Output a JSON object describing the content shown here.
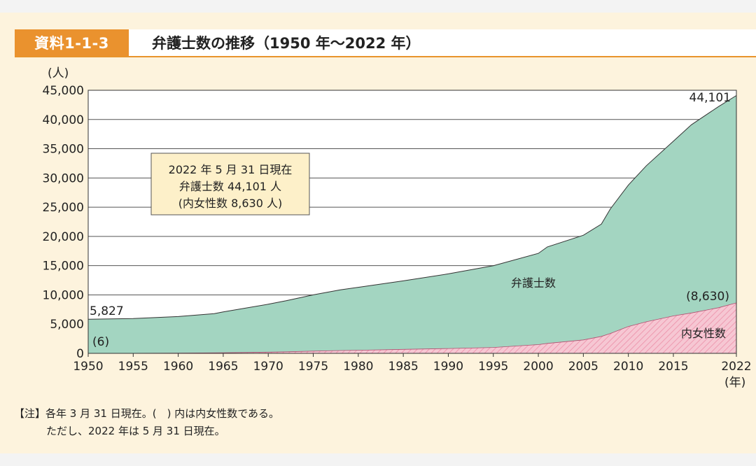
{
  "header": {
    "tag": "資料1-1-3",
    "title": "弁護士数の推移（1950 年～2022 年）"
  },
  "note": {
    "prefix": "【注】",
    "line1": "各年 3 月 31 日現在。(　) 内は内女性数である。",
    "line2": "ただし、2022 年は 5 月 31 日現在。"
  },
  "colors": {
    "total": "#a3d5c1",
    "women": "#f6c7d3",
    "women_hatch": "#ec8fa8",
    "accent": "#ea922e",
    "panel": "#fdf3dd"
  },
  "chart_data": {
    "type": "area",
    "title": "弁護士数の推移（1950 年～2022 年）",
    "ylabel": "(人)",
    "xlabel": "(年)",
    "ylim": [
      0,
      45000
    ],
    "xlim": [
      1950,
      2022
    ],
    "yticks": [
      "0",
      "5,000",
      "10,000",
      "15,000",
      "20,000",
      "25,000",
      "30,000",
      "35,000",
      "40,000",
      "45,000"
    ],
    "xticks": [
      "1950",
      "1955",
      "1960",
      "1965",
      "1970",
      "1975",
      "1980",
      "1985",
      "1990",
      "1995",
      "2000",
      "2005",
      "2010",
      "2015",
      "2022"
    ],
    "grid": true,
    "x": [
      1950,
      1955,
      1960,
      1964,
      1965,
      1970,
      1972,
      1975,
      1978,
      1980,
      1985,
      1990,
      1995,
      2000,
      2001,
      2005,
      2007,
      2008,
      2010,
      2012,
      2015,
      2017,
      2020,
      2022
    ],
    "series": [
      {
        "name": "弁護士数",
        "values": [
          5827,
          5950,
          6300,
          6800,
          7100,
          8400,
          9000,
          10000,
          10850,
          11300,
          12400,
          13600,
          15000,
          17100,
          18200,
          20200,
          22100,
          24700,
          28800,
          32100,
          36300,
          39100,
          42200,
          44101
        ]
      },
      {
        "name": "内女性数",
        "values": [
          6,
          15,
          40,
          80,
          100,
          200,
          260,
          380,
          480,
          530,
          680,
          820,
          1000,
          1500,
          1700,
          2300,
          2900,
          3400,
          4600,
          5400,
          6400,
          6900,
          7800,
          8630
        ]
      }
    ],
    "annotations": {
      "start_total": "5,827",
      "start_women": "(6)",
      "end_total": "44,101",
      "end_women": "(8,630)",
      "total_label": "弁護士数",
      "women_label": "内女性数"
    },
    "info_box": [
      "2022 年 5 月 31 日現在",
      "弁護士数 44,101 人",
      "(内女性数 8,630 人)"
    ]
  }
}
